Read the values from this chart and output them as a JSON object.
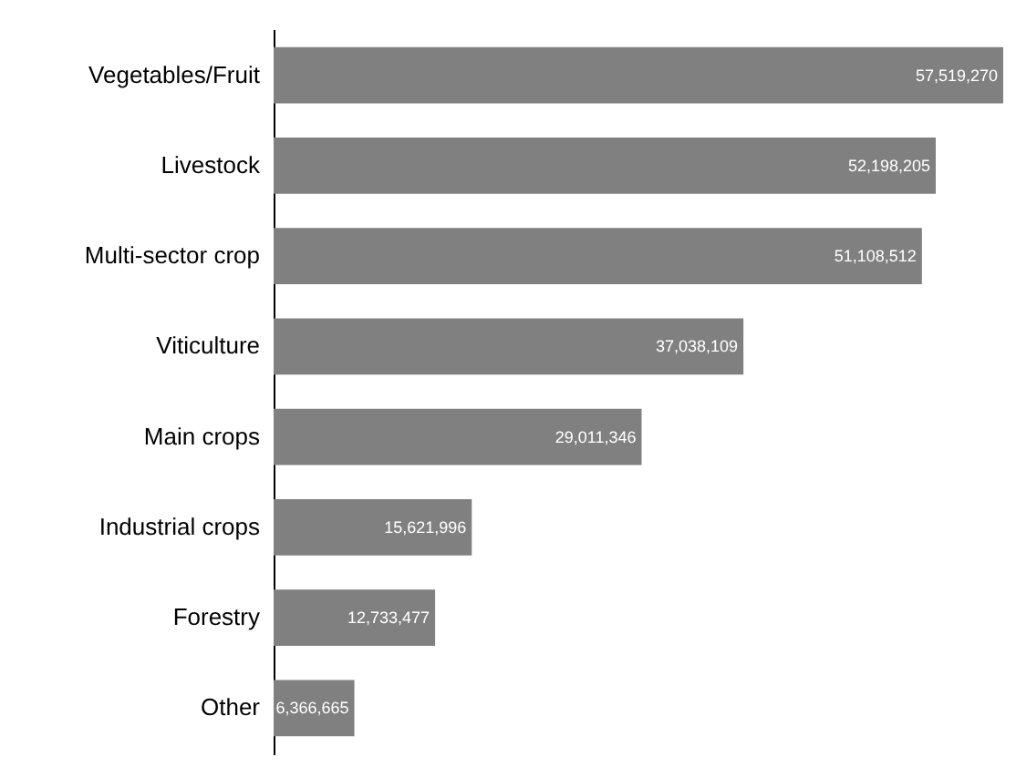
{
  "chart_data": {
    "type": "bar",
    "orientation": "horizontal",
    "categories": [
      "Vegetables/Fruit",
      "Livestock",
      "Multi-sector crop",
      "Viticulture",
      "Main crops",
      "Industrial crops",
      "Forestry",
      "Other"
    ],
    "values": [
      57519270,
      52198205,
      51108512,
      37038109,
      29011346,
      15621996,
      12733477,
      6366665
    ],
    "value_labels": [
      "57,519,270",
      "52,198,205",
      "51,108,512",
      "37,038,109",
      "29,011,346",
      "15,621,996",
      "12,733,477",
      "6,366,665"
    ],
    "color": "#808080",
    "tick_labels": "y"
  }
}
